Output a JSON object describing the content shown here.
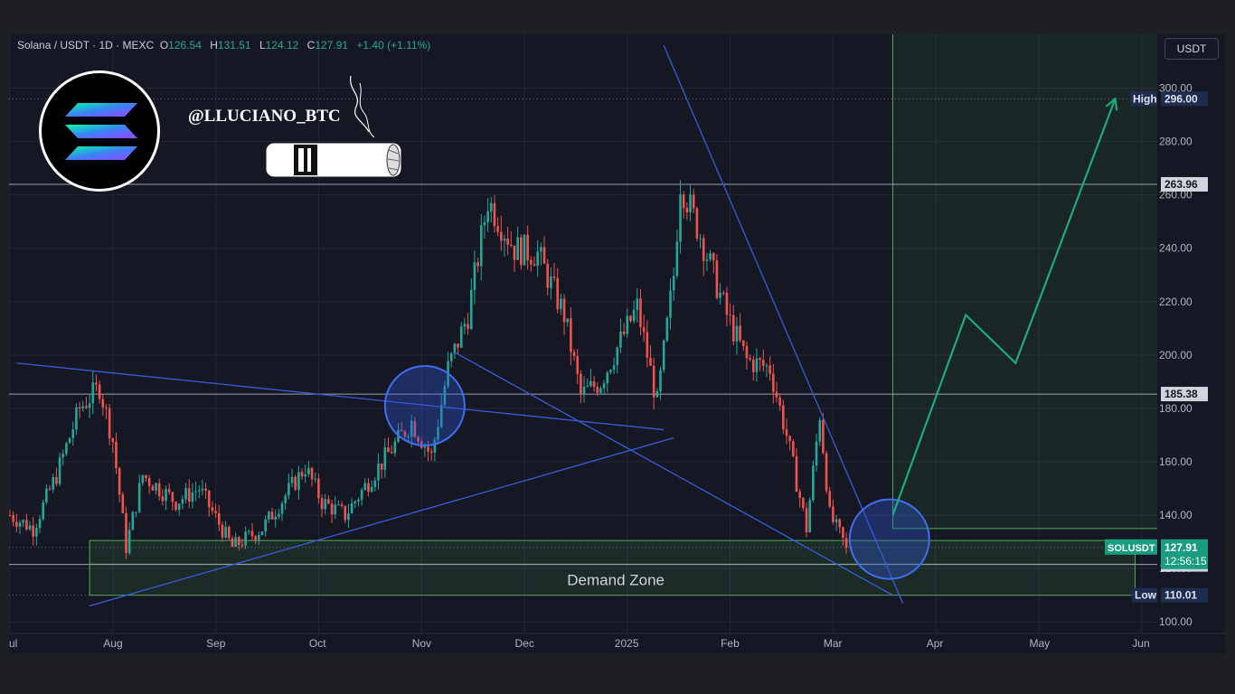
{
  "header": {
    "symbol": "Solana / USDT · 1D · MEXC",
    "o_label": "O",
    "o_value": "126.54",
    "h_label": "H",
    "h_value": "131.51",
    "l_label": "L",
    "l_value": "124.12",
    "c_label": "C",
    "c_value": "127.91",
    "change": "+1.40 (+1.11%)"
  },
  "currency_button": "USDT",
  "watermark": {
    "handle": "@LLUCIANO_BTC",
    "logo": "solana-logo-icon",
    "decoration": "cigar-icon"
  },
  "colors": {
    "up": "#26a69a",
    "down": "#ef5350",
    "trendline": "#3a5bd9",
    "zone": "#4caf50",
    "arrow": "#1fa886",
    "background": "#151823"
  },
  "chart_data": {
    "type": "candlestick",
    "symbol": "SOLUSDT",
    "timeframe": "1D",
    "ylim": [
      95,
      310
    ],
    "y_ticks": [
      "100.00",
      "120.00",
      "140.00",
      "160.00",
      "180.00",
      "200.00",
      "220.00",
      "240.00",
      "260.00",
      "280.00",
      "300.00"
    ],
    "x_ticks": [
      "Jul",
      "Aug",
      "Sep",
      "Oct",
      "Nov",
      "Dec",
      "2025",
      "Feb",
      "Mar",
      "Apr",
      "May",
      "Jun"
    ],
    "price_anchors": [
      {
        "date": "2024-07-01",
        "value": 140
      },
      {
        "date": "2024-07-08",
        "value": 135
      },
      {
        "date": "2024-07-15",
        "value": 155
      },
      {
        "date": "2024-07-22",
        "value": 180
      },
      {
        "date": "2024-07-28",
        "value": 188
      },
      {
        "date": "2024-08-01",
        "value": 168
      },
      {
        "date": "2024-08-05",
        "value": 128
      },
      {
        "date": "2024-08-10",
        "value": 155
      },
      {
        "date": "2024-08-20",
        "value": 145
      },
      {
        "date": "2024-08-27",
        "value": 150
      },
      {
        "date": "2024-09-06",
        "value": 128
      },
      {
        "date": "2024-09-15",
        "value": 135
      },
      {
        "date": "2024-09-28",
        "value": 158
      },
      {
        "date": "2024-10-03",
        "value": 145
      },
      {
        "date": "2024-10-10",
        "value": 140
      },
      {
        "date": "2024-10-20",
        "value": 158
      },
      {
        "date": "2024-10-30",
        "value": 175
      },
      {
        "date": "2024-11-05",
        "value": 162
      },
      {
        "date": "2024-11-10",
        "value": 195
      },
      {
        "date": "2024-11-16",
        "value": 215
      },
      {
        "date": "2024-11-22",
        "value": 258
      },
      {
        "date": "2024-11-30",
        "value": 240
      },
      {
        "date": "2024-12-07",
        "value": 238
      },
      {
        "date": "2024-12-15",
        "value": 215
      },
      {
        "date": "2024-12-20",
        "value": 185
      },
      {
        "date": "2024-12-26",
        "value": 190
      },
      {
        "date": "2025-01-06",
        "value": 218
      },
      {
        "date": "2025-01-12",
        "value": 182
      },
      {
        "date": "2025-01-17",
        "value": 230
      },
      {
        "date": "2025-01-19",
        "value": 265
      },
      {
        "date": "2025-01-25",
        "value": 245
      },
      {
        "date": "2025-02-02",
        "value": 215
      },
      {
        "date": "2025-02-08",
        "value": 198
      },
      {
        "date": "2025-02-15",
        "value": 195
      },
      {
        "date": "2025-02-20",
        "value": 170
      },
      {
        "date": "2025-02-26",
        "value": 135
      },
      {
        "date": "2025-03-02",
        "value": 178
      },
      {
        "date": "2025-03-05",
        "value": 140
      },
      {
        "date": "2025-03-10",
        "value": 127.91
      }
    ],
    "horizontal_levels": [
      {
        "value": 263.96,
        "label": "263.96"
      },
      {
        "value": 185.38,
        "label": "185.38"
      },
      {
        "value": 121.55,
        "label": "121.55"
      }
    ],
    "high": {
      "label": "High",
      "value": "296.00",
      "y": 296
    },
    "low": {
      "label": "Low",
      "value": "110.01",
      "y": 110.01
    },
    "last": {
      "name": "SOLUSDT",
      "value": "127.91",
      "countdown": "12:56:15",
      "y": 127.91
    },
    "demand_zone": {
      "label": "Demand Zone",
      "start": "2024-07-25",
      "end": "2025-06-05",
      "top": 130.5,
      "mid": 121.6,
      "bottom": 110.0
    },
    "target_box": {
      "start": "2025-03-24",
      "end": "2025-06-13",
      "top": 324,
      "bottom": 135
    },
    "trendlines": [
      {
        "from": {
          "date": "2024-07-03",
          "value": 197
        },
        "to": {
          "date": "2025-01-14",
          "value": 172
        }
      },
      {
        "from": {
          "date": "2024-07-25",
          "value": 106
        },
        "to": {
          "date": "2025-01-17",
          "value": 169
        }
      },
      {
        "from": {
          "date": "2024-11-12",
          "value": 201
        },
        "to": {
          "date": "2025-03-24",
          "value": 110
        }
      },
      {
        "from": {
          "date": "2025-01-14",
          "value": 316
        },
        "to": {
          "date": "2025-03-27",
          "value": 107
        }
      }
    ],
    "circles": [
      {
        "date": "2024-11-03",
        "value": 181
      },
      {
        "date": "2025-03-23",
        "value": 131
      }
    ],
    "projection": [
      {
        "date": "2025-03-24",
        "value": 140
      },
      {
        "date": "2025-04-15",
        "value": 215
      },
      {
        "date": "2025-04-30",
        "value": 197
      },
      {
        "date": "2025-05-30",
        "value": 296
      }
    ]
  }
}
